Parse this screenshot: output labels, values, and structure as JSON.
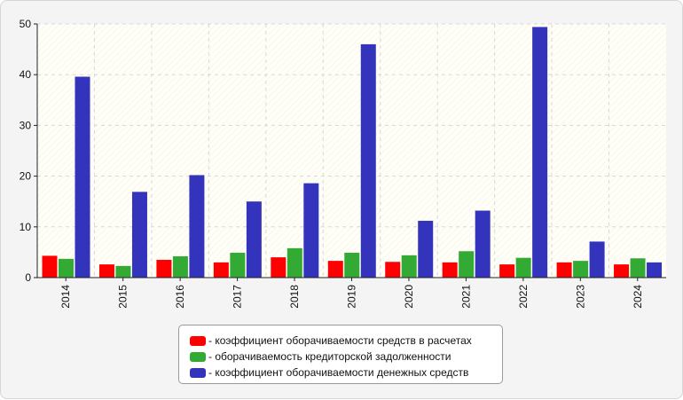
{
  "chart_data": {
    "type": "bar",
    "categories": [
      "2014",
      "2015",
      "2016",
      "2017",
      "2018",
      "2019",
      "2020",
      "2021",
      "2022",
      "2023",
      "2024"
    ],
    "series": [
      {
        "name": "- коэффициент оборачиваемости средств в расчетах",
        "color": "#ff0000",
        "values": [
          4.3,
          2.6,
          3.5,
          3.0,
          4.0,
          3.3,
          3.1,
          3.0,
          2.6,
          3.0,
          2.6
        ]
      },
      {
        "name": "- оборачиваемость кредиторской задолженности",
        "color": "#33aa33",
        "values": [
          3.7,
          2.3,
          4.2,
          4.9,
          5.8,
          4.9,
          4.4,
          5.2,
          3.9,
          3.3,
          3.8
        ]
      },
      {
        "name": "- коэффициент оборачиваемости денежных средств",
        "color": "#3333bb",
        "values": [
          39.6,
          16.9,
          20.2,
          15.0,
          18.6,
          46.0,
          11.2,
          13.2,
          49.4,
          7.1,
          3.0
        ]
      }
    ],
    "y_ticks": [
      "0",
      "10",
      "20",
      "30",
      "40",
      "50"
    ],
    "ylim": [
      0,
      50
    ],
    "grid": true,
    "legend_position": "bottom"
  }
}
